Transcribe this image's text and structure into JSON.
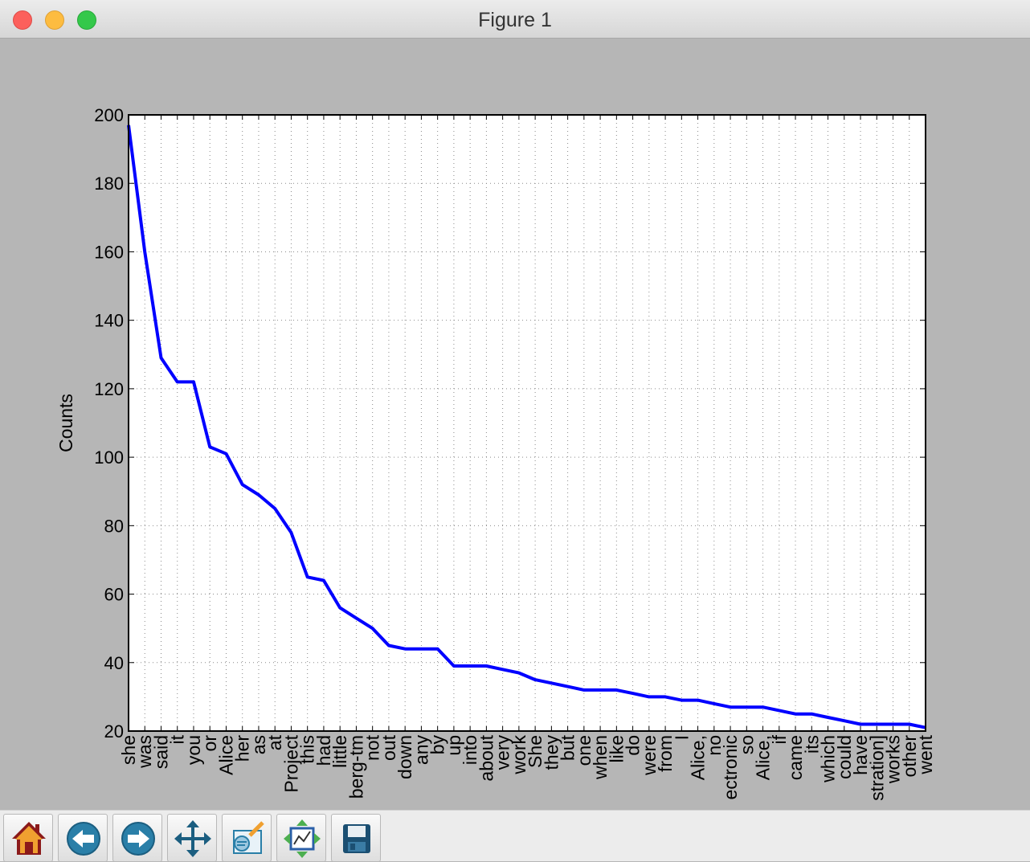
{
  "window": {
    "title": "Figure 1"
  },
  "toolbar": {
    "buttons": [
      {
        "icon": "home-icon"
      },
      {
        "icon": "back-arrow-icon"
      },
      {
        "icon": "forward-arrow-icon"
      },
      {
        "icon": "pan-icon"
      },
      {
        "icon": "zoom-icon"
      },
      {
        "icon": "configure-subplots-icon"
      },
      {
        "icon": "save-icon"
      }
    ]
  },
  "chart_data": {
    "type": "line",
    "title": "",
    "xlabel": "",
    "ylabel": "Counts",
    "ylim": [
      20,
      200
    ],
    "yticks": [
      20,
      40,
      60,
      80,
      100,
      120,
      140,
      160,
      180,
      200
    ],
    "grid": true,
    "line_color": "#0000ff",
    "categories": [
      "she",
      "was",
      "said",
      "it",
      "you",
      "or",
      "Alice",
      "her",
      "as",
      "at",
      "Project",
      "this",
      "had",
      "little",
      "berg-tm",
      "not",
      "out",
      "down",
      "any",
      "by",
      "up",
      "into",
      "about",
      "very",
      "work",
      "She",
      "they",
      "but",
      "one",
      "when",
      "like",
      "do",
      "were",
      "from",
      "I",
      "Alice,",
      "no",
      "ectronic",
      "so",
      "Alice,",
      "if",
      "came",
      "its",
      "which",
      "could",
      "have",
      "stration]",
      "works",
      "other",
      "went"
    ],
    "values": [
      197,
      160,
      129,
      122,
      122,
      103,
      101,
      92,
      89,
      85,
      78,
      65,
      64,
      56,
      53,
      50,
      45,
      44,
      44,
      44,
      39,
      39,
      39,
      38,
      37,
      35,
      34,
      33,
      32,
      32,
      32,
      31,
      30,
      30,
      29,
      29,
      28,
      27,
      27,
      27,
      26,
      25,
      25,
      24,
      23,
      22,
      22,
      22,
      22,
      21
    ]
  }
}
